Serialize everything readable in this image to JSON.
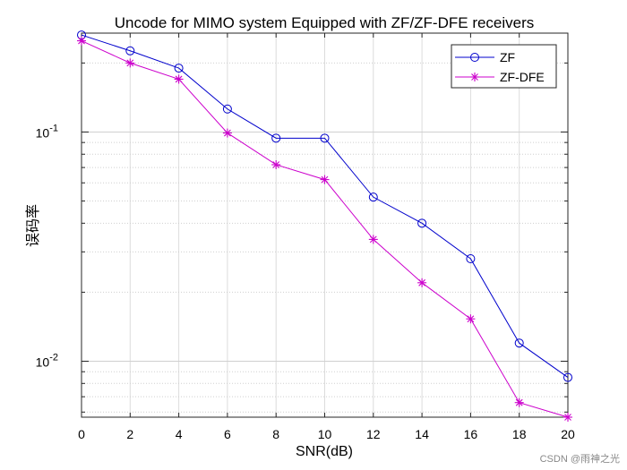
{
  "chart_data": {
    "type": "line",
    "title": "Uncode for MIMO system Equipped with ZF/ZF-DFE receivers",
    "xlabel": "SNR(dB)",
    "ylabel": "误码率",
    "yscale": "log",
    "x": [
      0,
      2,
      4,
      6,
      8,
      10,
      12,
      14,
      16,
      18,
      20
    ],
    "xlim": [
      0,
      20
    ],
    "ylim": [
      0.0057,
      0.27
    ],
    "xticks": [
      "0",
      "2",
      "4",
      "6",
      "8",
      "10",
      "12",
      "14",
      "16",
      "18",
      "20"
    ],
    "yticks": [
      {
        "base": "10",
        "exp": "-1",
        "value": 0.1
      },
      {
        "base": "10",
        "exp": "-2",
        "value": 0.01
      }
    ],
    "grid": true,
    "legend_position": "top-right",
    "series": [
      {
        "name": "ZF",
        "color": "#0000cc",
        "marker": "circle",
        "values": [
          0.265,
          0.226,
          0.19,
          0.126,
          0.094,
          0.094,
          0.052,
          0.04,
          0.028,
          0.012,
          0.0085
        ]
      },
      {
        "name": "ZF-DFE",
        "color": "#cc00cc",
        "marker": "asterisk",
        "values": [
          0.25,
          0.2,
          0.17,
          0.099,
          0.072,
          0.062,
          0.034,
          0.022,
          0.0153,
          0.0066,
          0.0057
        ]
      }
    ]
  },
  "watermark": "CSDN @雨神之光"
}
